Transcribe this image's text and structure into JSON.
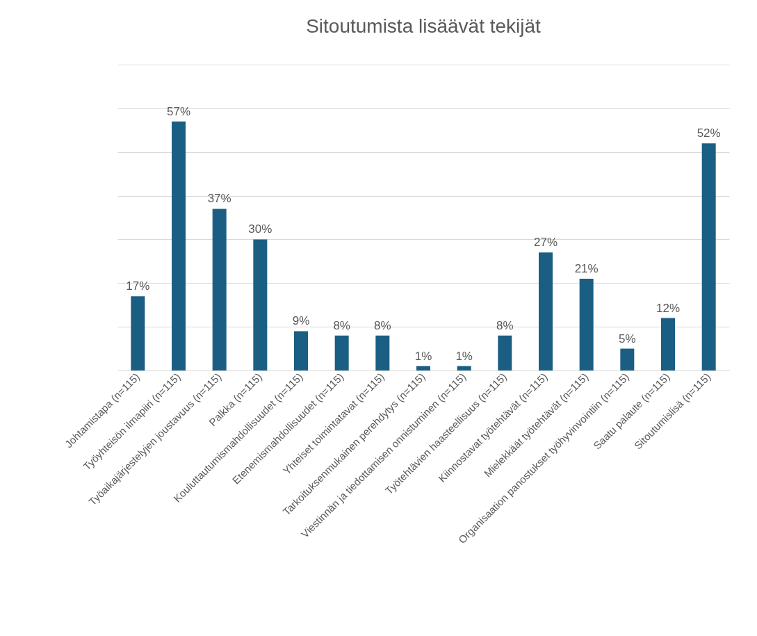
{
  "chart_data": {
    "type": "bar",
    "title": "Sitoutumista lisäävät tekijät",
    "categories": [
      "Johtamistapa (n=115)",
      "Työyhteisön ilmapiiri (n=115)",
      "Työaikajärjestelyjen joustavuus (n=115)",
      "Palkka (n=115)",
      "Kouluttautumismahdollisuudet (n=115)",
      "Etenemismahdollisuudet (n=115)",
      "Yhteiset toimintatavat (n=115)",
      "Tarkoituksenmukainen perehdytys (n=115)",
      "Viestinnän ja tiedottamisen onnistuminen (n=115)",
      "Työtehtävien haasteellisuus (n=115)",
      "Kiinnostavat työtehtävät (n=115)",
      "Mielekkäät työtehtävät (n=115)",
      "Organisaation panostukset työhyvinvointiin (n=115)",
      "Saatu palaute (n=115)",
      "Sitoutumislisä (n=115)"
    ],
    "values": [
      17,
      57,
      37,
      30,
      9,
      8,
      8,
      1,
      1,
      8,
      27,
      21,
      5,
      12,
      52
    ],
    "value_labels": [
      "17%",
      "57%",
      "37%",
      "30%",
      "9%",
      "8%",
      "8%",
      "1%",
      "1%",
      "8%",
      "27%",
      "21%",
      "5%",
      "12%",
      "52%"
    ],
    "color": "#1b5e84",
    "ylim": [
      0,
      70
    ],
    "yticks": [
      {
        "value": 0,
        "label": null
      },
      {
        "value": 10,
        "label": null
      },
      {
        "value": 20,
        "label": null
      },
      {
        "value": 30,
        "label": null
      },
      {
        "value": 40,
        "label": null
      },
      {
        "value": 50,
        "label": null
      },
      {
        "value": 60,
        "label": null
      },
      {
        "value": 70,
        "label": null
      }
    ],
    "grid": "y",
    "tick_labels": "x"
  }
}
